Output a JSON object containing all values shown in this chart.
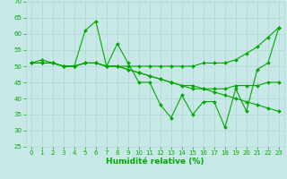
{
  "xlabel": "Humidité relative (%)",
  "xlim": [
    -0.5,
    23.5
  ],
  "ylim": [
    25,
    70
  ],
  "yticks": [
    25,
    30,
    35,
    40,
    45,
    50,
    55,
    60,
    65,
    70
  ],
  "xticks": [
    0,
    1,
    2,
    3,
    4,
    5,
    6,
    7,
    8,
    9,
    10,
    11,
    12,
    13,
    14,
    15,
    16,
    17,
    18,
    19,
    20,
    21,
    22,
    23
  ],
  "bg_color": "#c8e8e8",
  "grid_color": "#b0d8d0",
  "line_color": "#00aa00",
  "lines": [
    [
      51,
      52,
      51,
      50,
      50,
      61,
      64,
      50,
      57,
      51,
      45,
      45,
      38,
      34,
      41,
      35,
      39,
      39,
      31,
      43,
      36,
      49,
      51,
      62
    ],
    [
      51,
      51,
      51,
      50,
      50,
      51,
      51,
      50,
      50,
      49,
      48,
      47,
      46,
      45,
      44,
      43,
      43,
      42,
      41,
      40,
      39,
      38,
      37,
      36
    ],
    [
      51,
      51,
      51,
      50,
      50,
      51,
      51,
      50,
      50,
      49,
      48,
      47,
      46,
      45,
      44,
      44,
      43,
      43,
      43,
      44,
      44,
      44,
      45,
      45
    ],
    [
      51,
      51,
      51,
      50,
      50,
      51,
      51,
      50,
      50,
      50,
      50,
      50,
      50,
      50,
      50,
      50,
      51,
      51,
      51,
      52,
      54,
      56,
      59,
      62
    ]
  ],
  "markersize": 2.0,
  "linewidth": 0.8,
  "tick_fontsize": 5.0,
  "xlabel_fontsize": 6.5
}
